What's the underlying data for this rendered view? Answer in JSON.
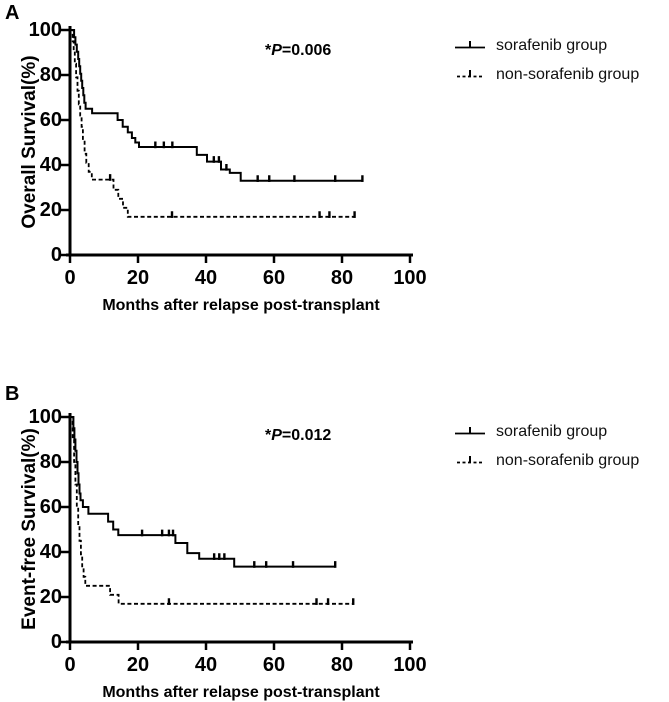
{
  "chart_data": [
    {
      "type": "line",
      "subtype": "kaplan-meier-step",
      "panel_label": "A",
      "ylabel": "Overall Survival(%)",
      "xlabel": "Months after relapse post-transplant",
      "annotation": {
        "prefix": "*",
        "symbol": "P",
        "text": "=0.006",
        "full": "*P=0.006"
      },
      "xlim": [
        0,
        100
      ],
      "ylim": [
        0,
        100
      ],
      "xticks": [
        0,
        20,
        40,
        60,
        80,
        100
      ],
      "yticks": [
        0,
        20,
        40,
        60,
        80,
        100
      ],
      "grid": false,
      "legend_position": "right-top",
      "line_color": "#000000",
      "series": [
        {
          "name": "sorafenib group",
          "line_style": "solid",
          "color": "#000000",
          "steps": [
            [
              0,
              100
            ],
            [
              1.2,
              100
            ],
            [
              1.2,
              96.8
            ],
            [
              1.6,
              96.8
            ],
            [
              1.6,
              93.5
            ],
            [
              2,
              93.5
            ],
            [
              2,
              90.3
            ],
            [
              2.4,
              90.3
            ],
            [
              2.4,
              87.1
            ],
            [
              2.7,
              87.1
            ],
            [
              2.7,
              83.9
            ],
            [
              3,
              83.9
            ],
            [
              3,
              80.6
            ],
            [
              3.3,
              80.6
            ],
            [
              3.3,
              77.4
            ],
            [
              3.6,
              77.4
            ],
            [
              3.6,
              74.2
            ],
            [
              3.9,
              74.2
            ],
            [
              3.9,
              71
            ],
            [
              4.2,
              71
            ],
            [
              4.2,
              67.7
            ],
            [
              4.6,
              67.7
            ],
            [
              4.6,
              65
            ],
            [
              6.5,
              65
            ],
            [
              6.5,
              63
            ],
            [
              14,
              63
            ],
            [
              14,
              60
            ],
            [
              15.5,
              60
            ],
            [
              15.5,
              57
            ],
            [
              17,
              57
            ],
            [
              17,
              54.5
            ],
            [
              18.2,
              54.5
            ],
            [
              18.2,
              52
            ],
            [
              19.2,
              52
            ],
            [
              19.2,
              50
            ],
            [
              20.3,
              50
            ],
            [
              20.3,
              48
            ],
            [
              37.3,
              48
            ],
            [
              37.3,
              44.5
            ],
            [
              40.3,
              44.5
            ],
            [
              40.3,
              41.5
            ],
            [
              44.4,
              41.5
            ],
            [
              44.4,
              38
            ],
            [
              47,
              38
            ],
            [
              47,
              36.5
            ],
            [
              50.2,
              36.5
            ],
            [
              50.2,
              33
            ],
            [
              86,
              33
            ]
          ],
          "censor_marks": [
            [
              25.1,
              48
            ],
            [
              27.6,
              48
            ],
            [
              30.1,
              48
            ],
            [
              42.3,
              41.5
            ],
            [
              43.8,
              41.5
            ],
            [
              46,
              38
            ],
            [
              55.2,
              33
            ],
            [
              58.6,
              33
            ],
            [
              66,
              33
            ],
            [
              78,
              33
            ],
            [
              86,
              33
            ]
          ]
        },
        {
          "name": "non-sorafenib group",
          "line_style": "dashed",
          "color": "#000000",
          "steps": [
            [
              0,
              100
            ],
            [
              0.8,
              100
            ],
            [
              0.8,
              95
            ],
            [
              1.1,
              95
            ],
            [
              1.1,
              90
            ],
            [
              1.4,
              90
            ],
            [
              1.4,
              85
            ],
            [
              1.8,
              85
            ],
            [
              1.8,
              79
            ],
            [
              2.2,
              79
            ],
            [
              2.2,
              73
            ],
            [
              2.6,
              73
            ],
            [
              2.6,
              67
            ],
            [
              3,
              67
            ],
            [
              3,
              62
            ],
            [
              3.4,
              62
            ],
            [
              3.4,
              57
            ],
            [
              3.8,
              57
            ],
            [
              3.8,
              51
            ],
            [
              4.3,
              51
            ],
            [
              4.3,
              45
            ],
            [
              4.8,
              45
            ],
            [
              4.8,
              41
            ],
            [
              5.5,
              41
            ],
            [
              5.5,
              37
            ],
            [
              6.4,
              37
            ],
            [
              6.4,
              33.5
            ],
            [
              12.8,
              33.5
            ],
            [
              12.8,
              29
            ],
            [
              14.2,
              29
            ],
            [
              14.2,
              25
            ],
            [
              15.6,
              25
            ],
            [
              15.6,
              21
            ],
            [
              17,
              21
            ],
            [
              17,
              17
            ],
            [
              83.7,
              17
            ]
          ],
          "censor_marks": [
            [
              11.8,
              33.5
            ],
            [
              30,
              17
            ],
            [
              73.4,
              17
            ],
            [
              76.3,
              17
            ],
            [
              83.7,
              17
            ]
          ]
        }
      ]
    },
    {
      "type": "line",
      "subtype": "kaplan-meier-step",
      "panel_label": "B",
      "ylabel": "Event-free Survival(%)",
      "xlabel": "Months after relapse post-transplant",
      "annotation": {
        "prefix": "*",
        "symbol": "P",
        "text": "=0.012",
        "full": "*P=0.012"
      },
      "xlim": [
        0,
        100
      ],
      "ylim": [
        0,
        100
      ],
      "xticks": [
        0,
        20,
        40,
        60,
        80,
        100
      ],
      "yticks": [
        0,
        20,
        40,
        60,
        80,
        100
      ],
      "grid": false,
      "legend_position": "right-top",
      "line_color": "#000000",
      "series": [
        {
          "name": "sorafenib group",
          "line_style": "solid",
          "color": "#000000",
          "steps": [
            [
              0,
              100
            ],
            [
              1,
              100
            ],
            [
              1,
              95
            ],
            [
              1.3,
              95
            ],
            [
              1.3,
              90
            ],
            [
              1.6,
              90
            ],
            [
              1.6,
              85
            ],
            [
              1.9,
              85
            ],
            [
              1.9,
              80
            ],
            [
              2.2,
              80
            ],
            [
              2.2,
              75
            ],
            [
              2.5,
              75
            ],
            [
              2.5,
              70
            ],
            [
              2.8,
              70
            ],
            [
              2.8,
              66
            ],
            [
              3.1,
              66
            ],
            [
              3.1,
              63
            ],
            [
              3.8,
              63
            ],
            [
              3.8,
              60
            ],
            [
              5.4,
              60
            ],
            [
              5.4,
              57
            ],
            [
              11.2,
              57
            ],
            [
              11.2,
              53.5
            ],
            [
              12.7,
              53.5
            ],
            [
              12.7,
              50
            ],
            [
              14.2,
              50
            ],
            [
              14.2,
              47.5
            ],
            [
              31,
              47.5
            ],
            [
              31,
              44
            ],
            [
              34.5,
              44
            ],
            [
              34.5,
              39.5
            ],
            [
              38,
              39.5
            ],
            [
              38,
              37
            ],
            [
              48.3,
              37
            ],
            [
              48.3,
              33.5
            ],
            [
              78,
              33.5
            ]
          ],
          "censor_marks": [
            [
              21.2,
              47.5
            ],
            [
              27.1,
              47.5
            ],
            [
              29.1,
              47.5
            ],
            [
              30.3,
              47.5
            ],
            [
              42.4,
              37
            ],
            [
              43.9,
              37
            ],
            [
              45.4,
              37
            ],
            [
              54.2,
              33.5
            ],
            [
              57.7,
              33.5
            ],
            [
              65.6,
              33.5
            ],
            [
              78,
              33.5
            ]
          ]
        },
        {
          "name": "non-sorafenib group",
          "line_style": "dashed",
          "color": "#000000",
          "steps": [
            [
              0,
              100
            ],
            [
              0.8,
              100
            ],
            [
              0.8,
              90
            ],
            [
              1.2,
              90
            ],
            [
              1.2,
              80
            ],
            [
              1.6,
              80
            ],
            [
              1.6,
              70
            ],
            [
              2,
              70
            ],
            [
              2,
              60
            ],
            [
              2.4,
              60
            ],
            [
              2.4,
              52
            ],
            [
              2.8,
              52
            ],
            [
              2.8,
              45
            ],
            [
              3.2,
              45
            ],
            [
              3.2,
              39
            ],
            [
              3.6,
              39
            ],
            [
              3.6,
              33
            ],
            [
              4,
              33
            ],
            [
              4,
              29
            ],
            [
              4.5,
              29
            ],
            [
              4.5,
              25
            ],
            [
              11.8,
              25
            ],
            [
              11.8,
              21
            ],
            [
              14.3,
              21
            ],
            [
              14.3,
              17
            ],
            [
              83.3,
              17
            ]
          ],
          "censor_marks": [
            [
              29.1,
              17
            ],
            [
              72.5,
              17
            ],
            [
              75.9,
              17
            ],
            [
              83.3,
              17
            ]
          ]
        }
      ]
    }
  ]
}
